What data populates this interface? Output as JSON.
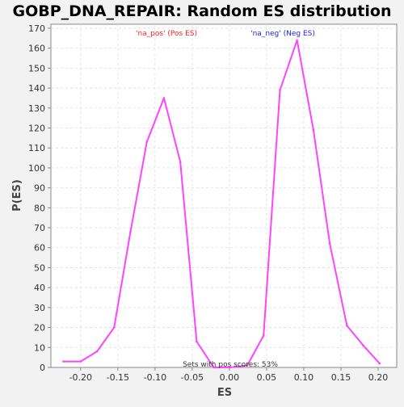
{
  "chart_data": {
    "type": "line",
    "title": "GOBP_DNA_REPAIR: Random ES distribution",
    "xlabel": "ES",
    "ylabel": "P(ES)",
    "xlim": [
      -0.24,
      0.225
    ],
    "ylim": [
      0,
      172
    ],
    "x_ticks": [
      -0.2,
      -0.15,
      -0.1,
      -0.05,
      0.0,
      0.05,
      0.1,
      0.15,
      0.2
    ],
    "x_tick_labels": [
      "-0.20",
      "-0.15",
      "-0.10",
      "-0.05",
      "0.00",
      "0.05",
      "0.10",
      "0.15",
      "0.20"
    ],
    "y_ticks": [
      0,
      10,
      20,
      30,
      40,
      50,
      60,
      70,
      80,
      90,
      100,
      110,
      120,
      130,
      140,
      150,
      160,
      170
    ],
    "y_tick_labels": [
      "0",
      "10",
      "20",
      "30",
      "40",
      "50",
      "60",
      "70",
      "80",
      "90",
      "100",
      "110",
      "120",
      "130",
      "140",
      "150",
      "160",
      "170"
    ],
    "grid": true,
    "series": [
      {
        "color": "#ff44ff",
        "x": [
          -0.223,
          -0.2,
          -0.178,
          -0.155,
          -0.133,
          -0.111,
          -0.088,
          -0.066,
          -0.044,
          -0.021,
          0.001,
          0.024,
          0.046,
          0.068,
          0.091,
          0.113,
          0.135,
          0.158,
          0.18,
          0.202
        ],
        "y": [
          3,
          3,
          8,
          20,
          68,
          113,
          135,
          103,
          13,
          0,
          0,
          1,
          16,
          139,
          164,
          119,
          62,
          21,
          11,
          2
        ]
      }
    ],
    "legend": [
      {
        "label": "'na_pos' (Pos ES)",
        "color": "#ff2222"
      },
      {
        "label": "'na_neg' (Neg ES)",
        "color": "#2222ff"
      }
    ],
    "annotation": "Sets with pos scores: 53%",
    "colors": {
      "plot_bg": "#ffffff",
      "page_bg": "#f2f2f2",
      "grid": "#dddddd",
      "axis": "#888888"
    }
  }
}
